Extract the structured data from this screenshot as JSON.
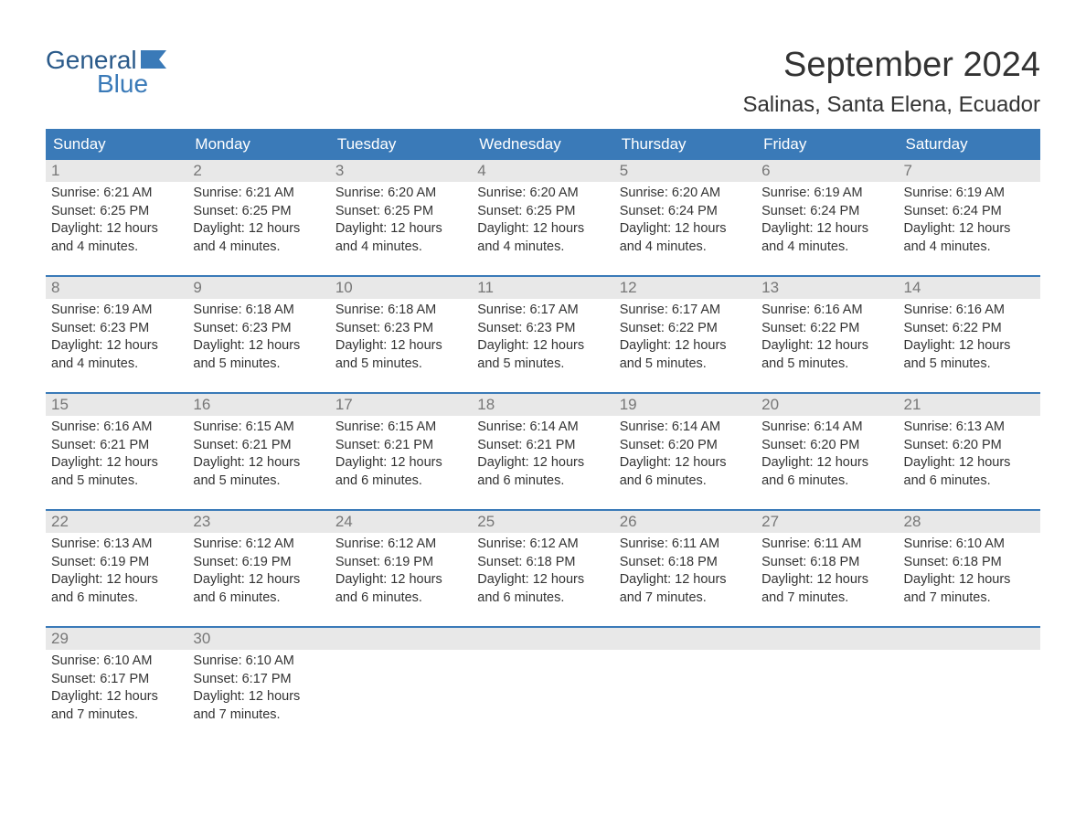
{
  "logo": {
    "line1": "General",
    "line2": "Blue"
  },
  "title": "September 2024",
  "location": "Salinas, Santa Elena, Ecuador",
  "colors": {
    "header_bg": "#3a7ab8",
    "header_text": "#ffffff",
    "day_number_bg": "#e8e8e8",
    "day_number_text": "#777777",
    "body_text": "#333333",
    "border": "#3a7ab8",
    "logo_dark": "#2a5a8a",
    "logo_light": "#3a7ab8"
  },
  "weekdays": [
    "Sunday",
    "Monday",
    "Tuesday",
    "Wednesday",
    "Thursday",
    "Friday",
    "Saturday"
  ],
  "weeks": [
    [
      {
        "day": "1",
        "sunrise": "Sunrise: 6:21 AM",
        "sunset": "Sunset: 6:25 PM",
        "daylight": "Daylight: 12 hours and 4 minutes."
      },
      {
        "day": "2",
        "sunrise": "Sunrise: 6:21 AM",
        "sunset": "Sunset: 6:25 PM",
        "daylight": "Daylight: 12 hours and 4 minutes."
      },
      {
        "day": "3",
        "sunrise": "Sunrise: 6:20 AM",
        "sunset": "Sunset: 6:25 PM",
        "daylight": "Daylight: 12 hours and 4 minutes."
      },
      {
        "day": "4",
        "sunrise": "Sunrise: 6:20 AM",
        "sunset": "Sunset: 6:25 PM",
        "daylight": "Daylight: 12 hours and 4 minutes."
      },
      {
        "day": "5",
        "sunrise": "Sunrise: 6:20 AM",
        "sunset": "Sunset: 6:24 PM",
        "daylight": "Daylight: 12 hours and 4 minutes."
      },
      {
        "day": "6",
        "sunrise": "Sunrise: 6:19 AM",
        "sunset": "Sunset: 6:24 PM",
        "daylight": "Daylight: 12 hours and 4 minutes."
      },
      {
        "day": "7",
        "sunrise": "Sunrise: 6:19 AM",
        "sunset": "Sunset: 6:24 PM",
        "daylight": "Daylight: 12 hours and 4 minutes."
      }
    ],
    [
      {
        "day": "8",
        "sunrise": "Sunrise: 6:19 AM",
        "sunset": "Sunset: 6:23 PM",
        "daylight": "Daylight: 12 hours and 4 minutes."
      },
      {
        "day": "9",
        "sunrise": "Sunrise: 6:18 AM",
        "sunset": "Sunset: 6:23 PM",
        "daylight": "Daylight: 12 hours and 5 minutes."
      },
      {
        "day": "10",
        "sunrise": "Sunrise: 6:18 AM",
        "sunset": "Sunset: 6:23 PM",
        "daylight": "Daylight: 12 hours and 5 minutes."
      },
      {
        "day": "11",
        "sunrise": "Sunrise: 6:17 AM",
        "sunset": "Sunset: 6:23 PM",
        "daylight": "Daylight: 12 hours and 5 minutes."
      },
      {
        "day": "12",
        "sunrise": "Sunrise: 6:17 AM",
        "sunset": "Sunset: 6:22 PM",
        "daylight": "Daylight: 12 hours and 5 minutes."
      },
      {
        "day": "13",
        "sunrise": "Sunrise: 6:16 AM",
        "sunset": "Sunset: 6:22 PM",
        "daylight": "Daylight: 12 hours and 5 minutes."
      },
      {
        "day": "14",
        "sunrise": "Sunrise: 6:16 AM",
        "sunset": "Sunset: 6:22 PM",
        "daylight": "Daylight: 12 hours and 5 minutes."
      }
    ],
    [
      {
        "day": "15",
        "sunrise": "Sunrise: 6:16 AM",
        "sunset": "Sunset: 6:21 PM",
        "daylight": "Daylight: 12 hours and 5 minutes."
      },
      {
        "day": "16",
        "sunrise": "Sunrise: 6:15 AM",
        "sunset": "Sunset: 6:21 PM",
        "daylight": "Daylight: 12 hours and 5 minutes."
      },
      {
        "day": "17",
        "sunrise": "Sunrise: 6:15 AM",
        "sunset": "Sunset: 6:21 PM",
        "daylight": "Daylight: 12 hours and 6 minutes."
      },
      {
        "day": "18",
        "sunrise": "Sunrise: 6:14 AM",
        "sunset": "Sunset: 6:21 PM",
        "daylight": "Daylight: 12 hours and 6 minutes."
      },
      {
        "day": "19",
        "sunrise": "Sunrise: 6:14 AM",
        "sunset": "Sunset: 6:20 PM",
        "daylight": "Daylight: 12 hours and 6 minutes."
      },
      {
        "day": "20",
        "sunrise": "Sunrise: 6:14 AM",
        "sunset": "Sunset: 6:20 PM",
        "daylight": "Daylight: 12 hours and 6 minutes."
      },
      {
        "day": "21",
        "sunrise": "Sunrise: 6:13 AM",
        "sunset": "Sunset: 6:20 PM",
        "daylight": "Daylight: 12 hours and 6 minutes."
      }
    ],
    [
      {
        "day": "22",
        "sunrise": "Sunrise: 6:13 AM",
        "sunset": "Sunset: 6:19 PM",
        "daylight": "Daylight: 12 hours and 6 minutes."
      },
      {
        "day": "23",
        "sunrise": "Sunrise: 6:12 AM",
        "sunset": "Sunset: 6:19 PM",
        "daylight": "Daylight: 12 hours and 6 minutes."
      },
      {
        "day": "24",
        "sunrise": "Sunrise: 6:12 AM",
        "sunset": "Sunset: 6:19 PM",
        "daylight": "Daylight: 12 hours and 6 minutes."
      },
      {
        "day": "25",
        "sunrise": "Sunrise: 6:12 AM",
        "sunset": "Sunset: 6:18 PM",
        "daylight": "Daylight: 12 hours and 6 minutes."
      },
      {
        "day": "26",
        "sunrise": "Sunrise: 6:11 AM",
        "sunset": "Sunset: 6:18 PM",
        "daylight": "Daylight: 12 hours and 7 minutes."
      },
      {
        "day": "27",
        "sunrise": "Sunrise: 6:11 AM",
        "sunset": "Sunset: 6:18 PM",
        "daylight": "Daylight: 12 hours and 7 minutes."
      },
      {
        "day": "28",
        "sunrise": "Sunrise: 6:10 AM",
        "sunset": "Sunset: 6:18 PM",
        "daylight": "Daylight: 12 hours and 7 minutes."
      }
    ],
    [
      {
        "day": "29",
        "sunrise": "Sunrise: 6:10 AM",
        "sunset": "Sunset: 6:17 PM",
        "daylight": "Daylight: 12 hours and 7 minutes."
      },
      {
        "day": "30",
        "sunrise": "Sunrise: 6:10 AM",
        "sunset": "Sunset: 6:17 PM",
        "daylight": "Daylight: 12 hours and 7 minutes."
      },
      {
        "day": "",
        "empty": true
      },
      {
        "day": "",
        "empty": true
      },
      {
        "day": "",
        "empty": true
      },
      {
        "day": "",
        "empty": true
      },
      {
        "day": "",
        "empty": true
      }
    ]
  ]
}
